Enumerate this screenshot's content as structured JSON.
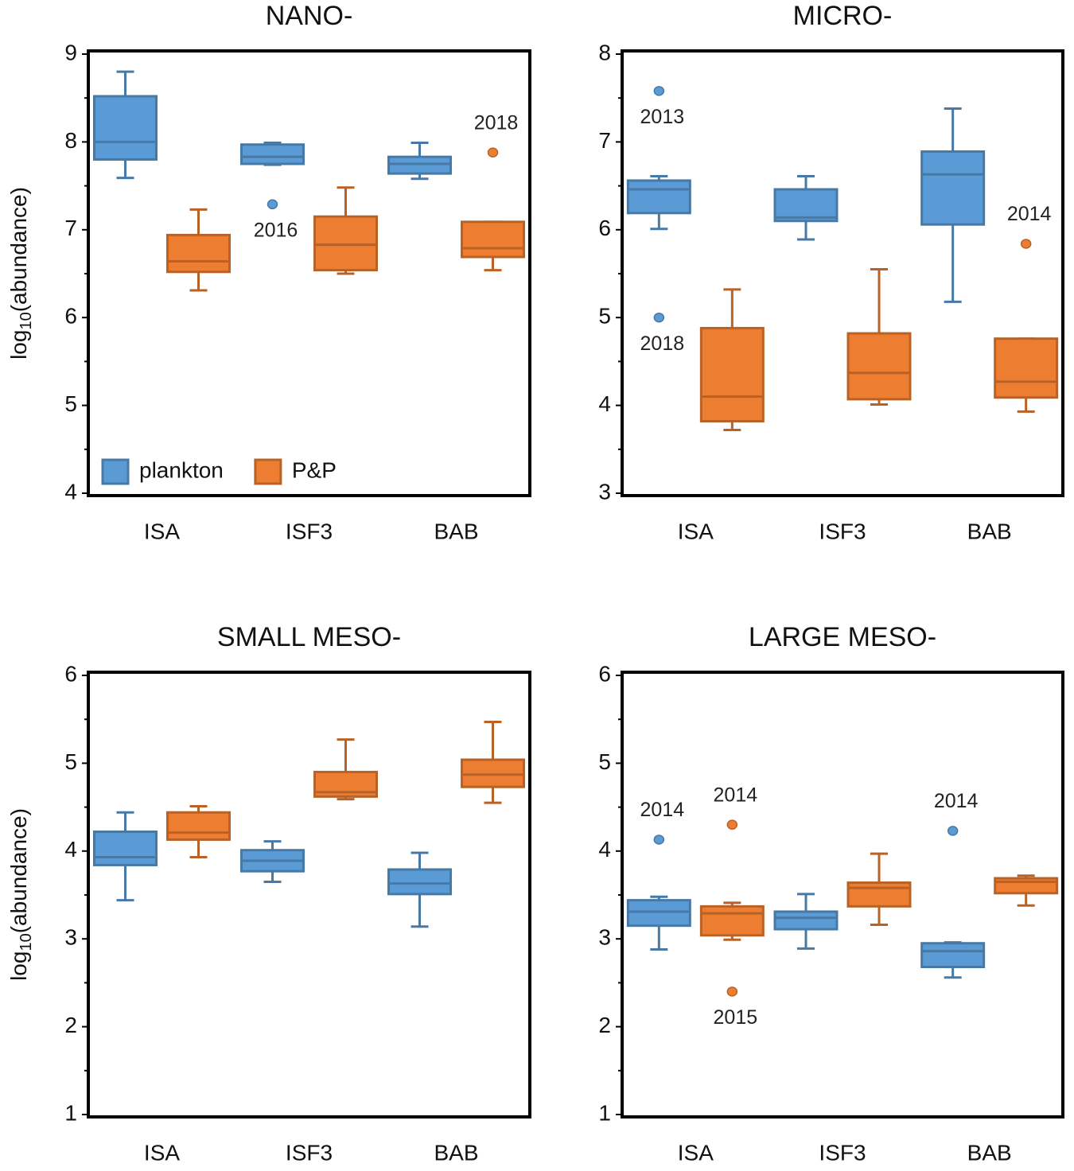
{
  "chart_data": [
    {
      "type": "box",
      "title": "NANO-",
      "ylabel": [
        "log",
        "10",
        "(abundance)"
      ],
      "categories": [
        "ISA",
        "ISF3",
        "BAB"
      ],
      "ylim": [
        4,
        9
      ],
      "yticks": [
        4,
        5,
        6,
        7,
        8,
        9
      ],
      "legend": "lower left",
      "series": [
        {
          "name": "plankton",
          "color": "#5b9bd5",
          "values": [
            {
              "min": 7.59,
              "q1": 7.8,
              "median": 8.0,
              "q3": 8.52,
              "max": 8.8,
              "outliers": []
            },
            {
              "min": 7.74,
              "q1": 7.75,
              "median": 7.83,
              "q3": 7.97,
              "max": 7.99,
              "outliers": [
                {
                  "value": 7.29,
                  "label": "2016"
                }
              ]
            },
            {
              "min": 7.58,
              "q1": 7.64,
              "median": 7.75,
              "q3": 7.83,
              "max": 7.99,
              "outliers": []
            }
          ]
        },
        {
          "name": "P&P",
          "color": "#ed7d31",
          "values": [
            {
              "min": 6.31,
              "q1": 6.52,
              "median": 6.64,
              "q3": 6.94,
              "max": 7.23,
              "outliers": []
            },
            {
              "min": 6.5,
              "q1": 6.54,
              "median": 6.83,
              "q3": 7.15,
              "max": 7.48,
              "outliers": []
            },
            {
              "min": 6.54,
              "q1": 6.69,
              "median": 6.79,
              "q3": 7.09,
              "max": 7.09,
              "outliers": [
                {
                  "value": 7.88,
                  "label": "2018"
                }
              ]
            }
          ]
        }
      ]
    },
    {
      "type": "box",
      "title": "MICRO-",
      "categories": [
        "ISA",
        "ISF3",
        "BAB"
      ],
      "ylim": [
        3,
        8
      ],
      "yticks": [
        3,
        4,
        5,
        6,
        7,
        8
      ],
      "series": [
        {
          "color": "#5b9bd5",
          "values": [
            {
              "min": 6.01,
              "q1": 6.19,
              "median": 6.46,
              "q3": 6.56,
              "max": 6.61,
              "outliers": [
                {
                  "value": 7.58,
                  "label": "2013"
                },
                {
                  "value": 5.0,
                  "label": "2018"
                }
              ]
            },
            {
              "min": 5.89,
              "q1": 6.1,
              "median": 6.14,
              "q3": 6.46,
              "max": 6.61,
              "outliers": []
            },
            {
              "min": 5.18,
              "q1": 6.06,
              "median": 6.63,
              "q3": 6.89,
              "max": 7.38,
              "outliers": []
            }
          ]
        },
        {
          "color": "#ed7d31",
          "values": [
            {
              "min": 3.72,
              "q1": 3.82,
              "median": 4.1,
              "q3": 4.88,
              "max": 5.32,
              "outliers": []
            },
            {
              "min": 4.01,
              "q1": 4.07,
              "median": 4.37,
              "q3": 4.82,
              "max": 5.55,
              "outliers": []
            },
            {
              "min": 3.93,
              "q1": 4.09,
              "median": 4.27,
              "q3": 4.76,
              "max": 4.76,
              "outliers": [
                {
                  "value": 5.84,
                  "label": "2014"
                }
              ]
            }
          ]
        }
      ]
    },
    {
      "type": "box",
      "title": "SMALL MESO-",
      "ylabel": [
        "log",
        "10",
        "(abundance)"
      ],
      "categories": [
        "ISA",
        "ISF3",
        "BAB"
      ],
      "ylim": [
        1,
        6
      ],
      "yticks": [
        1,
        2,
        3,
        4,
        5,
        6
      ],
      "series": [
        {
          "color": "#5b9bd5",
          "values": [
            {
              "min": 3.44,
              "q1": 3.84,
              "median": 3.93,
              "q3": 4.22,
              "max": 4.44,
              "outliers": []
            },
            {
              "min": 3.65,
              "q1": 3.77,
              "median": 3.89,
              "q3": 4.01,
              "max": 4.11,
              "outliers": []
            },
            {
              "min": 3.14,
              "q1": 3.51,
              "median": 3.63,
              "q3": 3.79,
              "max": 3.98,
              "outliers": []
            }
          ]
        },
        {
          "color": "#ed7d31",
          "values": [
            {
              "min": 3.93,
              "q1": 4.13,
              "median": 4.21,
              "q3": 4.44,
              "max": 4.51,
              "outliers": []
            },
            {
              "min": 4.59,
              "q1": 4.62,
              "median": 4.67,
              "q3": 4.9,
              "max": 5.27,
              "outliers": []
            },
            {
              "min": 4.55,
              "q1": 4.73,
              "median": 4.87,
              "q3": 5.04,
              "max": 5.47,
              "outliers": []
            }
          ]
        }
      ]
    },
    {
      "type": "box",
      "title": "LARGE MESO-",
      "categories": [
        "ISA",
        "ISF3",
        "BAB"
      ],
      "ylim": [
        1,
        6
      ],
      "yticks": [
        1,
        2,
        3,
        4,
        5,
        6
      ],
      "series": [
        {
          "color": "#5b9bd5",
          "values": [
            {
              "min": 2.88,
              "q1": 3.15,
              "median": 3.31,
              "q3": 3.44,
              "max": 3.48,
              "outliers": [
                {
                  "value": 4.13,
                  "label": "2014"
                }
              ]
            },
            {
              "min": 2.89,
              "q1": 3.11,
              "median": 3.24,
              "q3": 3.31,
              "max": 3.51,
              "outliers": []
            },
            {
              "min": 2.56,
              "q1": 2.68,
              "median": 2.86,
              "q3": 2.95,
              "max": 2.96,
              "outliers": [
                {
                  "value": 4.23,
                  "label": "2014"
                }
              ]
            }
          ]
        },
        {
          "color": "#ed7d31",
          "values": [
            {
              "min": 2.99,
              "q1": 3.04,
              "median": 3.29,
              "q3": 3.37,
              "max": 3.41,
              "outliers": [
                {
                  "value": 4.3,
                  "label": "2014"
                },
                {
                  "value": 2.4,
                  "label": "2015"
                }
              ]
            },
            {
              "min": 3.16,
              "q1": 3.37,
              "median": 3.58,
              "q3": 3.64,
              "max": 3.97,
              "outliers": []
            },
            {
              "min": 3.38,
              "q1": 3.52,
              "median": 3.65,
              "q3": 3.69,
              "max": 3.72,
              "outliers": []
            }
          ]
        }
      ]
    }
  ]
}
